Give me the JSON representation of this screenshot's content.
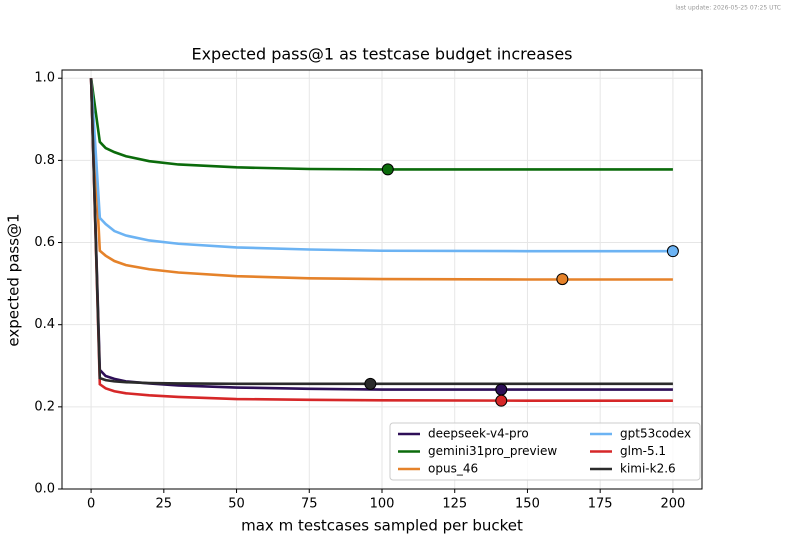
{
  "last_update": "last update: 2026-05-25 07:25 UTC",
  "chart_data": {
    "type": "line",
    "title": "Expected pass@1 as testcase budget increases",
    "x_label": "max m testcases sampled per bucket",
    "y_label": "expected pass@1",
    "x": [
      0,
      3,
      5,
      8,
      12,
      20,
      30,
      50,
      75,
      100,
      150,
      200
    ],
    "series": [
      {
        "name": "deepseek-v4-pro",
        "color": "#2e0f57",
        "values": [
          1,
          0.29,
          0.275,
          0.268,
          0.262,
          0.257,
          0.252,
          0.247,
          0.244,
          0.242,
          0.242,
          0.242
        ],
        "marker": {
          "x": 141,
          "y": 0.242
        }
      },
      {
        "name": "gemini31pro_preview",
        "color": "#0b6b0b",
        "values": [
          1,
          0.845,
          0.83,
          0.82,
          0.81,
          0.798,
          0.79,
          0.783,
          0.779,
          0.778,
          0.778,
          0.778
        ],
        "marker": {
          "x": 102,
          "y": 0.778
        }
      },
      {
        "name": "opus_46",
        "color": "#e5822a",
        "values": [
          1,
          0.58,
          0.568,
          0.555,
          0.545,
          0.535,
          0.527,
          0.518,
          0.513,
          0.511,
          0.51,
          0.51
        ],
        "marker": {
          "x": 162,
          "y": 0.511
        }
      },
      {
        "name": "gpt53codex",
        "color": "#6cb3f3",
        "values": [
          1,
          0.66,
          0.645,
          0.628,
          0.617,
          0.605,
          0.597,
          0.588,
          0.583,
          0.58,
          0.579,
          0.579
        ],
        "marker": {
          "x": 200,
          "y": 0.579
        }
      },
      {
        "name": "glm-5.1",
        "color": "#d62728",
        "values": [
          1,
          0.255,
          0.245,
          0.238,
          0.233,
          0.228,
          0.224,
          0.219,
          0.217,
          0.216,
          0.215,
          0.215
        ],
        "marker": {
          "x": 141,
          "y": 0.215
        }
      },
      {
        "name": "kimi-k2.6",
        "color": "#2b2b2b",
        "values": [
          1,
          0.27,
          0.265,
          0.262,
          0.26,
          0.258,
          0.257,
          0.256,
          0.256,
          0.256,
          0.256,
          0.256
        ],
        "marker": {
          "x": 96,
          "y": 0.256
        }
      }
    ],
    "xlim": [
      -10,
      210
    ],
    "ylim": [
      0,
      1.02
    ],
    "xticks": [
      0,
      25,
      50,
      75,
      100,
      125,
      150,
      175,
      200
    ],
    "yticks": [
      {
        "value": 0,
        "label": "0.0"
      },
      0.2,
      0.4,
      0.6,
      0.8,
      {
        "value": 1,
        "label": "1.0"
      }
    ],
    "grid": true,
    "legend": "lower right"
  }
}
